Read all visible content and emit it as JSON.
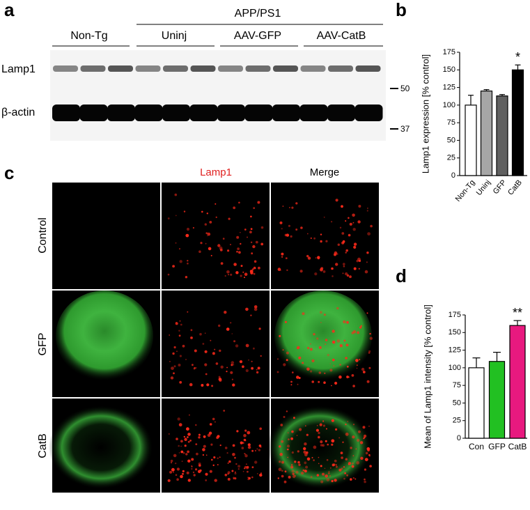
{
  "panel_labels": [
    "a",
    "b",
    "c",
    "d"
  ],
  "blot": {
    "group_header": "APP/PS1",
    "groups": [
      "Non-Tg",
      "Uninj",
      "AAV-GFP",
      "AAV-CatB"
    ],
    "rows": [
      "Lamp1",
      "β-actin"
    ],
    "markers": [
      "50",
      "37"
    ]
  },
  "microscopy": {
    "columns": [
      "Lamp1",
      "Merge"
    ],
    "rows": [
      "Control",
      "GFP",
      "CatB"
    ]
  },
  "chart_data": [
    {
      "type": "bar",
      "ylabel": "Lamp1 expression [% control]",
      "categories": [
        "Non-Tg",
        "Uninj",
        "GFP",
        "CatB"
      ],
      "values": [
        100,
        120,
        113,
        150
      ],
      "errors": [
        14,
        2,
        2,
        7
      ],
      "colors": [
        "#ffffff",
        "#a6a6a6",
        "#606060",
        "#000000"
      ],
      "ylim": [
        0,
        175
      ],
      "yticks": [
        0,
        25,
        50,
        75,
        100,
        125,
        150,
        175
      ],
      "annotations": [
        {
          "category": "CatB",
          "text": "*"
        }
      ]
    },
    {
      "type": "bar",
      "ylabel": "Mean of Lamp1 intensity [% control]",
      "categories": [
        "Con",
        "GFP",
        "CatB"
      ],
      "values": [
        100,
        109,
        160
      ],
      "errors": [
        14,
        13,
        7
      ],
      "colors": [
        "#ffffff",
        "#22c022",
        "#e8197f"
      ],
      "ylim": [
        0,
        175
      ],
      "yticks": [
        0,
        25,
        50,
        75,
        100,
        125,
        150,
        175
      ],
      "annotations": [
        {
          "category": "CatB",
          "text": "**"
        }
      ]
    }
  ]
}
